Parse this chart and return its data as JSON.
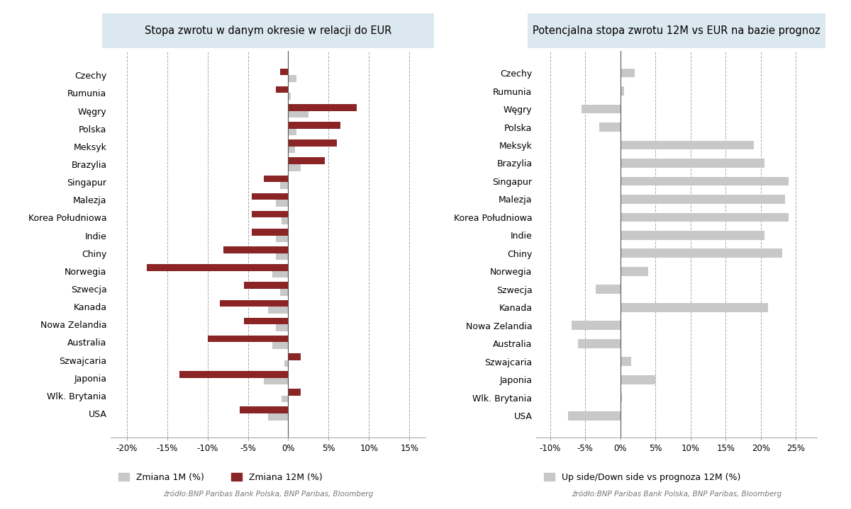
{
  "title1": "Stopa zwrotu w danym okresie w relacji do EUR",
  "title2": "Potencjalna stopa zwrotu 12M vs EUR na bazie prognoz",
  "source": "źródło:BNP Paribas Bank Polska, BNP Paribas, Bloomberg",
  "categories": [
    "Czechy",
    "Rumunia",
    "Węgry",
    "Polska",
    "Meksyk",
    "Brazylia",
    "Singapur",
    "Malezja",
    "Korea Południowa",
    "Indie",
    "Chiny",
    "Norwegia",
    "Szwecja",
    "Kanada",
    "Nowa Zelandia",
    "Australia",
    "Szwajcaria",
    "Japonia",
    "Wlk. Brytania",
    "USA"
  ],
  "zmiana_1m": [
    1.0,
    0.3,
    2.5,
    1.0,
    0.8,
    1.5,
    -1.0,
    -1.5,
    -0.8,
    -1.5,
    -1.5,
    -2.0,
    -1.0,
    -2.5,
    -1.5,
    -2.0,
    -0.5,
    -3.0,
    -0.8,
    -2.5
  ],
  "zmiana_12m": [
    -1.0,
    -1.5,
    8.5,
    6.5,
    6.0,
    4.5,
    -3.0,
    -4.5,
    -4.5,
    -4.5,
    -8.0,
    -17.5,
    -5.5,
    -8.5,
    -5.5,
    -10.0,
    1.5,
    -13.5,
    1.5,
    -6.0
  ],
  "upside": [
    2.0,
    0.5,
    -5.5,
    -3.0,
    19.0,
    20.5,
    24.0,
    23.5,
    24.0,
    20.5,
    23.0,
    4.0,
    -3.5,
    21.0,
    -7.0,
    -6.0,
    1.5,
    5.0,
    0.2,
    -7.5
  ],
  "color_1m": "#c8c8c8",
  "color_12m": "#8b2525",
  "color_upside": "#c8c8c8",
  "title_bg": "#dce8ef",
  "xlim1": [
    -22,
    17
  ],
  "xlim2": [
    -12,
    28
  ],
  "xticks1": [
    -20,
    -15,
    -10,
    -5,
    0,
    5,
    10,
    15
  ],
  "xticks2": [
    -10,
    -5,
    0,
    5,
    10,
    15,
    20,
    25
  ],
  "xticklabels1": [
    "-20%",
    "-15%",
    "-10%",
    "-5%",
    "0%",
    "5%",
    "10%",
    "15%"
  ],
  "xticklabels2": [
    "-10%",
    "-5%",
    "0%",
    "5%",
    "10%",
    "15%",
    "20%",
    "25%"
  ]
}
